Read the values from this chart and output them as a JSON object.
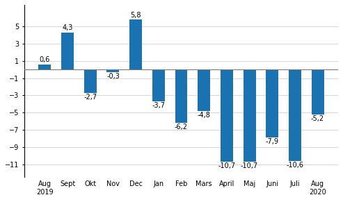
{
  "categories": [
    "Aug\n2019",
    "Sept",
    "Okt",
    "Nov",
    "Dec",
    "Jan",
    "Feb",
    "Mars",
    "April",
    "Maj",
    "Juni",
    "Juli",
    "Aug\n2020"
  ],
  "values": [
    0.6,
    4.3,
    -2.7,
    -0.3,
    5.8,
    -3.7,
    -6.2,
    -4.8,
    -10.7,
    -10.7,
    -7.9,
    -10.6,
    -5.2
  ],
  "bar_color": "#1a72b0",
  "ylim": [
    -12.5,
    7.5
  ],
  "yticks": [
    5,
    3,
    1,
    -1,
    -3,
    -5,
    -7,
    -9,
    -11
  ],
  "background_color": "#ffffff",
  "grid_color": "#d0d0d0",
  "label_fontsize": 7,
  "tick_fontsize": 7,
  "source_fontsize": 7.5,
  "bar_width": 0.55
}
